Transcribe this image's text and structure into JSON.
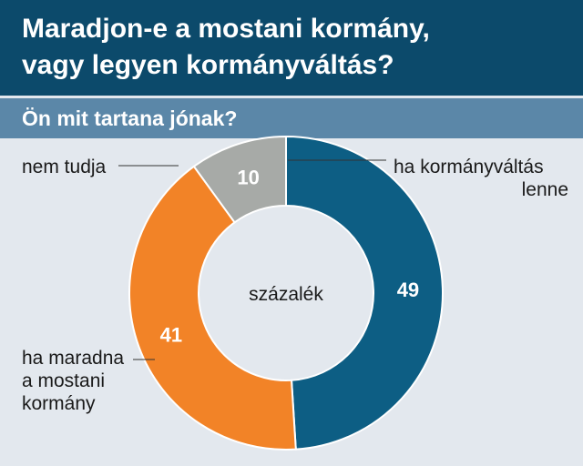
{
  "header": {
    "title_line1": "Maradjon-e a mostani kormány,",
    "title_line2": "vagy legyen kormányváltás?",
    "subtitle": "Ön mit tartana jónak?"
  },
  "chart_data": {
    "type": "pie",
    "donut": true,
    "center_label": "százalék",
    "slices": [
      {
        "label_lines": [
          "ha kormányváltás",
          "lenne"
        ],
        "value": 49,
        "color": "#0d5e84"
      },
      {
        "label_lines": [
          "ha maradna",
          "a mostani",
          "kormány"
        ],
        "value": 41,
        "color": "#f28327"
      },
      {
        "label_lines": [
          "nem tudja"
        ],
        "value": 10,
        "color": "#a7aaa7"
      }
    ]
  }
}
